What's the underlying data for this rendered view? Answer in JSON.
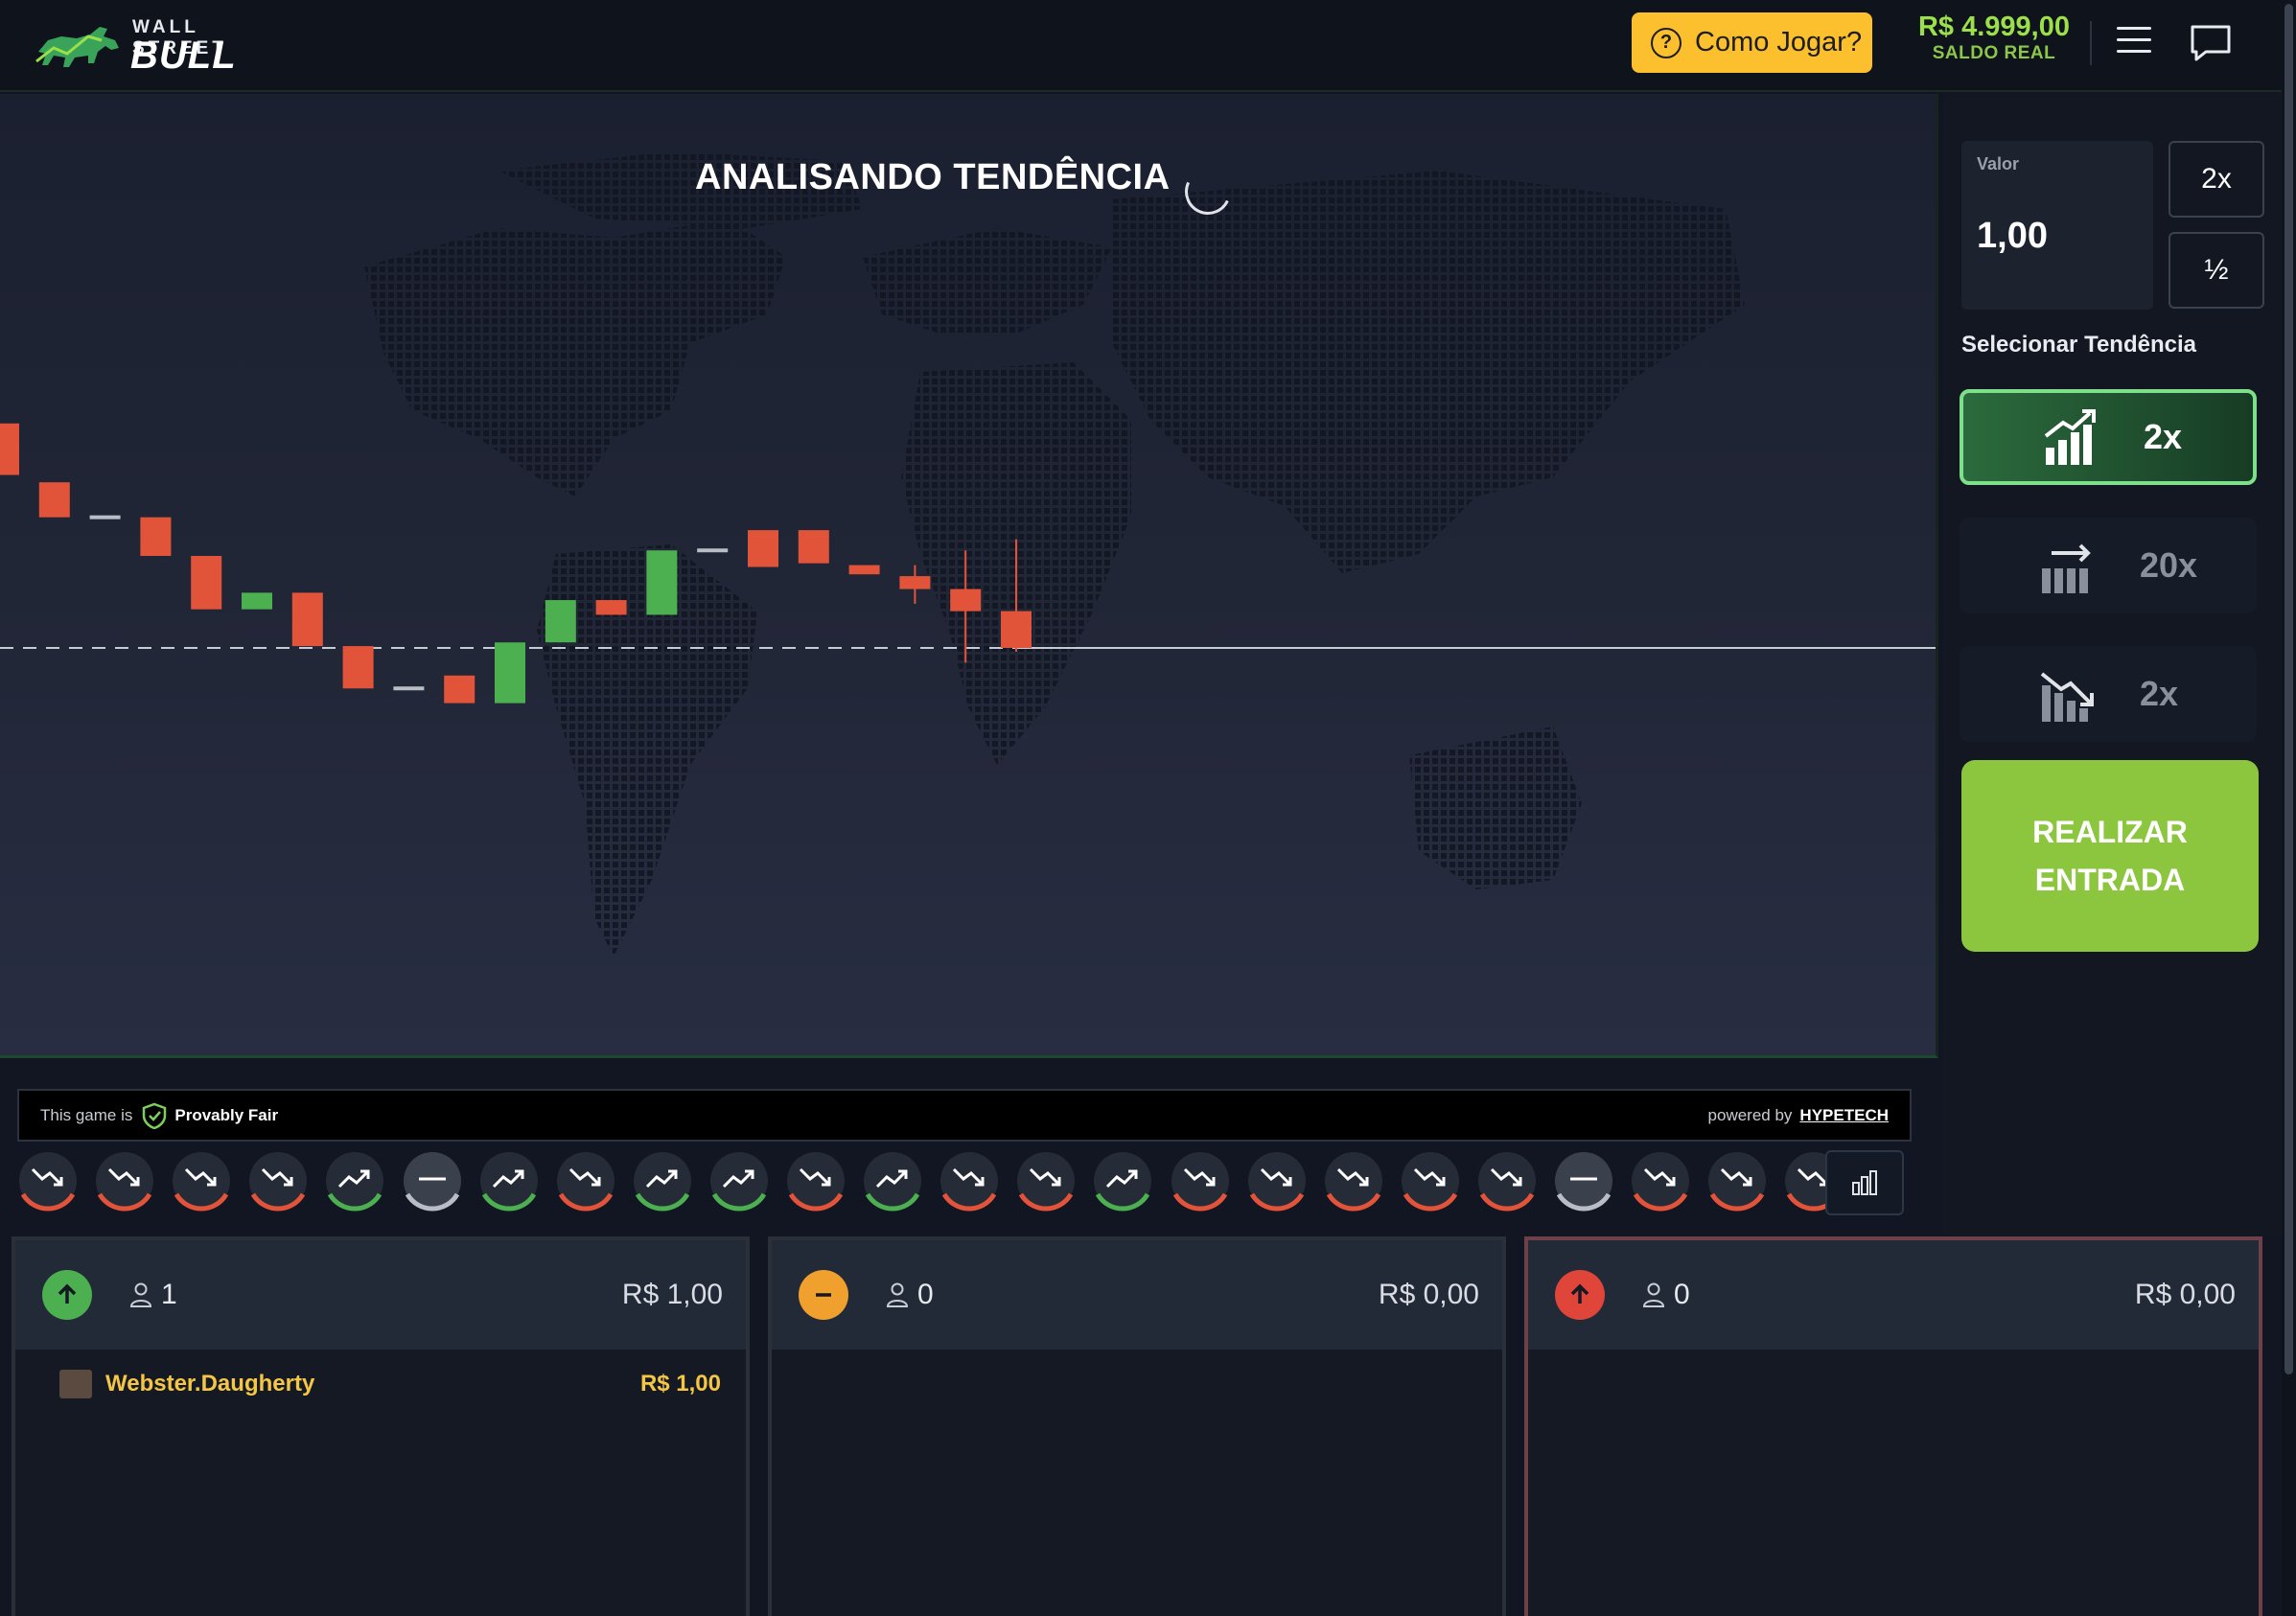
{
  "header": {
    "logo_top": "WALL STREET",
    "logo_bottom": "BULL",
    "how_to_play": "Como Jogar?",
    "balance": "R$ 4.999,00",
    "balance_label": "SALDO REAL"
  },
  "game": {
    "status": "ANALISANDO TENDÊNCIA"
  },
  "chart_data": {
    "type": "candlestick",
    "note": "Candles as [open, close] relative price units; baseline price 0 is the dashed/solid line",
    "baseline": 0,
    "candles": [
      {
        "open": 12.2,
        "close": 9.4
      },
      {
        "open": 9.0,
        "close": 7.1
      },
      {
        "open": 7.1,
        "close": 7.1
      },
      {
        "open": 7.1,
        "close": 5.0
      },
      {
        "open": 5.0,
        "close": 2.1
      },
      {
        "open": 2.1,
        "close": 3.0
      },
      {
        "open": 3.0,
        "close": 0.1
      },
      {
        "open": 0.1,
        "close": -2.2
      },
      {
        "open": -2.2,
        "close": -2.2
      },
      {
        "open": -1.5,
        "close": -3.0
      },
      {
        "open": -3.0,
        "close": 0.3
      },
      {
        "open": 0.3,
        "close": 2.6
      },
      {
        "open": 2.6,
        "close": 1.8
      },
      {
        "open": 1.8,
        "close": 5.3
      },
      {
        "open": 5.3,
        "close": 5.3
      },
      {
        "open": 6.4,
        "close": 4.4
      },
      {
        "open": 6.4,
        "close": 4.6
      },
      {
        "open": 4.5,
        "close": 4.0
      },
      {
        "open": 3.9,
        "close": 3.2
      },
      {
        "open": 3.2,
        "close": 2.0
      },
      {
        "open": 2.0,
        "close": 0.0
      }
    ],
    "wicks": [
      {
        "index": 18,
        "high": 4.5,
        "low": 2.4
      },
      {
        "index": 19,
        "high": 5.3,
        "low": -0.8
      },
      {
        "index": 20,
        "high": 5.9,
        "low": -0.2
      }
    ]
  },
  "fair": {
    "prefix": "This game is",
    "label": "Provably Fair",
    "powered": "powered by",
    "brand": "HYPETECH"
  },
  "history": [
    "down",
    "down",
    "down",
    "down",
    "up",
    "flat",
    "up",
    "down",
    "up",
    "up",
    "down",
    "up",
    "down",
    "down",
    "up",
    "down",
    "down",
    "down",
    "down",
    "down",
    "flat",
    "down",
    "down",
    "down"
  ],
  "side": {
    "value_label": "Valor",
    "value": "1,00",
    "double": "2x",
    "half": "½",
    "select_label": "Selecionar Tendência",
    "trend_up": "2x",
    "trend_flat": "20x",
    "trend_down": "2x",
    "enter_line1": "REALIZAR",
    "enter_line2": "ENTRADA"
  },
  "panels": {
    "up": {
      "count": "1",
      "total": "R$ 1,00"
    },
    "flat": {
      "count": "0",
      "total": "R$ 0,00"
    },
    "down": {
      "count": "0",
      "total": "R$ 0,00"
    },
    "bets": [
      {
        "name": "Webster.Daugherty",
        "amount": "R$ 1,00"
      }
    ]
  },
  "colors": {
    "up": "#4caf50",
    "down": "#e2543a",
    "flat": "#b8bdc6",
    "accent": "#8cc63f"
  }
}
